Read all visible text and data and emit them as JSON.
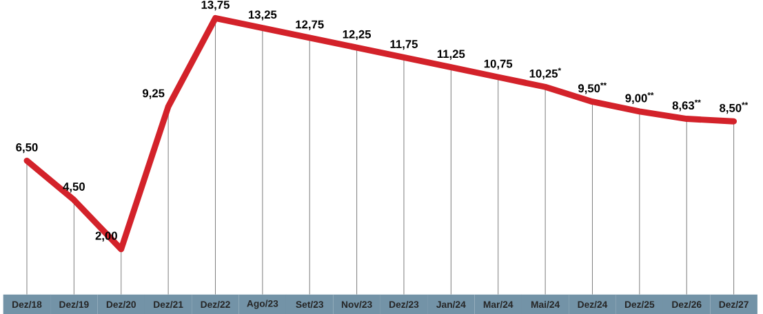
{
  "chart_data": {
    "type": "line",
    "categories": [
      "Dez/18",
      "Dez/19",
      "Dez/20",
      "Dez/21",
      "Dez/22",
      "Ago/23",
      "Set/23",
      "Nov/23",
      "Dez/23",
      "Jan/24",
      "Mar/24",
      "Mai/24",
      "Dez/24",
      "Dez/25",
      "Dez/26",
      "Dez/27"
    ],
    "series": [
      {
        "color": "#d3222a",
        "values": [
          6.5,
          4.5,
          2.0,
          9.25,
          13.75,
          13.25,
          12.75,
          12.25,
          11.75,
          11.25,
          10.75,
          10.25,
          9.5,
          9.0,
          8.63,
          8.5
        ],
        "value_labels": [
          "6,50",
          "4,50",
          "2,00",
          "9,25",
          "13,75",
          "13,25",
          "12,75",
          "12,25",
          "11,75",
          "11,25",
          "10,75",
          "10,25$^{*}$",
          "9,50$^{**}$",
          "9,00$^{**}$",
          "8,63$^{**}$",
          "8,50$^{**}$"
        ]
      }
    ],
    "marker": "none",
    "line_style": "solid",
    "grid": "x"
  }
}
